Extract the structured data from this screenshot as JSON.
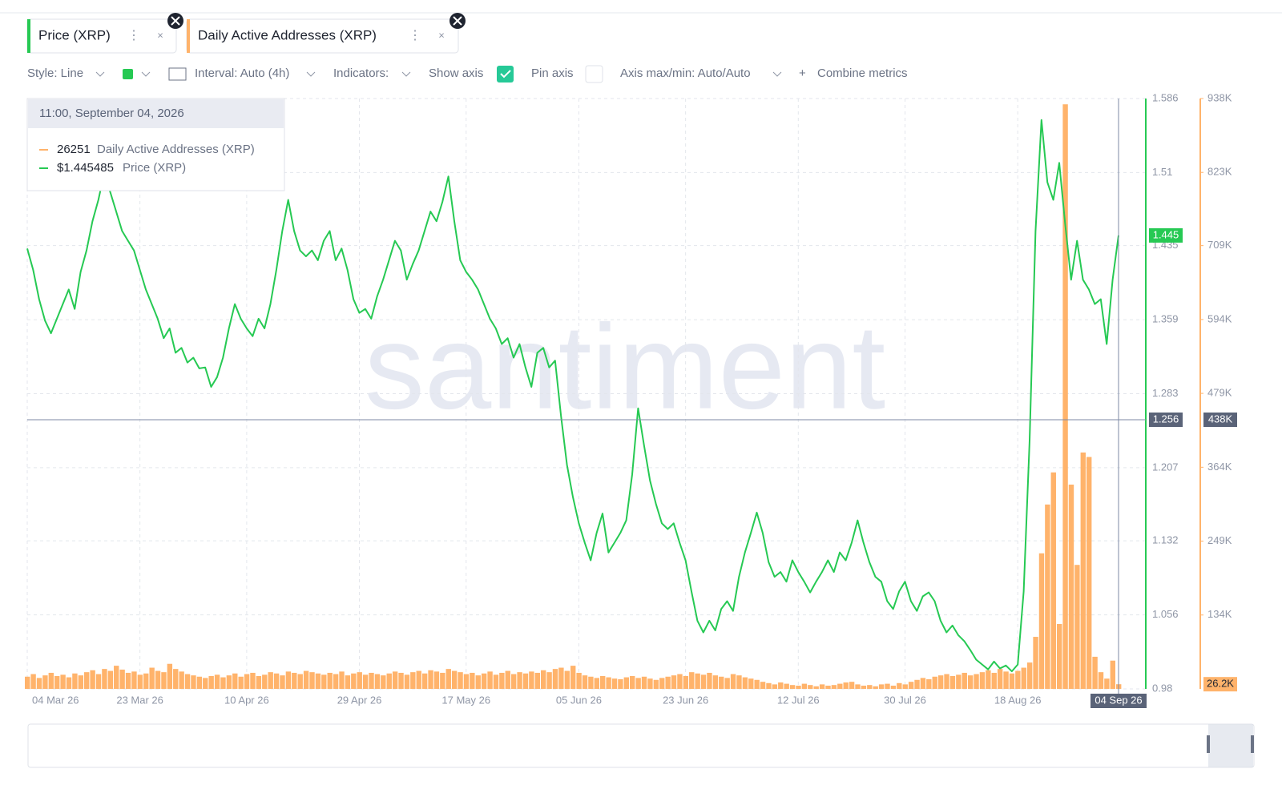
{
  "toolbar": {
    "metrics": [
      "Price (XRP)",
      "Daily Active Addresses (XRP)"
    ],
    "style": "Style: Line",
    "interval": "Interval: Auto (4h)",
    "indicators": "Indicators:",
    "show_axis": "Show axis",
    "pin_axis": "Pin axis",
    "axis_range": "Axis max/min: Auto/Auto",
    "combine": "Combine metrics"
  },
  "tooltip": {
    "time": "11:00, September 04, 2026",
    "values": [
      "26251",
      "$1.445485"
    ]
  },
  "crosshair": {
    "price_label": "1.256",
    "addresses_label": "438K"
  },
  "watermark": "santiment",
  "chart_data": {
    "type": "line",
    "categories": [
      "04 Mar 26",
      null,
      null,
      null,
      null,
      null,
      null,
      null,
      null,
      null,
      null,
      null,
      null,
      null,
      null,
      null,
      null,
      null,
      null,
      "23 Mar 26",
      null,
      null,
      null,
      null,
      null,
      null,
      null,
      null,
      null,
      null,
      null,
      null,
      null,
      null,
      null,
      null,
      null,
      "10 Apr 26",
      null,
      null,
      null,
      null,
      null,
      null,
      null,
      null,
      null,
      null,
      null,
      null,
      null,
      null,
      null,
      null,
      null,
      null,
      "29 Apr 26",
      null,
      null,
      null,
      null,
      null,
      null,
      null,
      null,
      null,
      null,
      null,
      null,
      null,
      null,
      null,
      null,
      null,
      "17 May 26",
      null,
      null,
      null,
      null,
      null,
      null,
      null,
      null,
      null,
      null,
      null,
      null,
      null,
      null,
      null,
      null,
      null,
      null,
      "05 Jun 26",
      null,
      null,
      null,
      null,
      null,
      null,
      null,
      null,
      null,
      null,
      null,
      null,
      null,
      null,
      null,
      null,
      null,
      "23 Jun 26",
      null,
      null,
      null,
      null,
      null,
      null,
      null,
      null,
      null,
      null,
      null,
      null,
      null,
      null,
      null,
      null,
      null,
      null,
      "12 Jul 26",
      null,
      null,
      null,
      null,
      null,
      null,
      null,
      null,
      null,
      null,
      null,
      null,
      null,
      null,
      null,
      null,
      null,
      "30 Jul 26",
      null,
      null,
      null,
      null,
      null,
      null,
      null,
      null,
      null,
      null,
      null,
      null,
      null,
      null,
      null,
      null,
      null,
      null,
      "18 Aug 26",
      null,
      null,
      null,
      null,
      null,
      null,
      null,
      null,
      null,
      null,
      null,
      null,
      null,
      null,
      null,
      null,
      "04 Sep 26"
    ],
    "series": [
      {
        "name": "Price (XRP)",
        "color": "#26c953",
        "axis": "y",
        "type": "line",
        "current_label": "1.445",
        "values": [
          1.432,
          1.41,
          1.38,
          1.358,
          1.345,
          1.36,
          1.375,
          1.39,
          1.37,
          1.408,
          1.43,
          1.46,
          1.482,
          1.51,
          1.49,
          1.47,
          1.45,
          1.44,
          1.43,
          1.41,
          1.39,
          1.375,
          1.36,
          1.34,
          1.35,
          1.325,
          1.33,
          1.315,
          1.32,
          1.309,
          1.31,
          1.29,
          1.3,
          1.32,
          1.35,
          1.375,
          1.36,
          1.35,
          1.342,
          1.36,
          1.35,
          1.375,
          1.41,
          1.45,
          1.482,
          1.45,
          1.43,
          1.424,
          1.43,
          1.42,
          1.44,
          1.45,
          1.42,
          1.432,
          1.41,
          1.38,
          1.366,
          1.37,
          1.36,
          1.383,
          1.4,
          1.42,
          1.44,
          1.43,
          1.4,
          1.416,
          1.43,
          1.45,
          1.47,
          1.46,
          1.48,
          1.506,
          1.46,
          1.42,
          1.408,
          1.4,
          1.39,
          1.375,
          1.36,
          1.35,
          1.334,
          1.34,
          1.32,
          1.334,
          1.31,
          1.29,
          1.325,
          1.33,
          1.31,
          1.317,
          1.26,
          1.21,
          1.177,
          1.15,
          1.13,
          1.112,
          1.14,
          1.16,
          1.12,
          1.13,
          1.14,
          1.153,
          1.2,
          1.268,
          1.23,
          1.194,
          1.17,
          1.15,
          1.144,
          1.15,
          1.13,
          1.112,
          1.08,
          1.05,
          1.038,
          1.05,
          1.04,
          1.062,
          1.07,
          1.06,
          1.095,
          1.12,
          1.14,
          1.161,
          1.14,
          1.11,
          1.095,
          1.1,
          1.09,
          1.112,
          1.1,
          1.09,
          1.079,
          1.09,
          1.1,
          1.112,
          1.1,
          1.12,
          1.112,
          1.13,
          1.153,
          1.13,
          1.11,
          1.095,
          1.09,
          1.07,
          1.062,
          1.08,
          1.09,
          1.07,
          1.06,
          1.075,
          1.079,
          1.07,
          1.05,
          1.038,
          1.045,
          1.035,
          1.029,
          1.02,
          1.01,
          1.005,
          1.0,
          1.008,
          1.001,
          1.004,
          0.998,
          1.005,
          1.08,
          1.235,
          1.45,
          1.564,
          1.5,
          1.482,
          1.52,
          1.457,
          1.4,
          1.44,
          1.4,
          1.39,
          1.375,
          1.38,
          1.334,
          1.4,
          1.445485
        ]
      },
      {
        "name": "Daily Active Addresses (XRP)",
        "color": "#ffb36b",
        "axis": "y2",
        "type": "bar",
        "current_label": "26.2K",
        "values": [
          38000,
          42000,
          36000,
          40000,
          44000,
          39000,
          41000,
          37000,
          43000,
          40000,
          45000,
          48000,
          42000,
          50000,
          47000,
          55000,
          49000,
          44000,
          46000,
          41000,
          43000,
          52000,
          47000,
          45000,
          58000,
          50000,
          46000,
          42000,
          40000,
          38000,
          36000,
          39000,
          41000,
          37000,
          40000,
          43000,
          38000,
          42000,
          44000,
          39000,
          41000,
          45000,
          43000,
          40000,
          46000,
          44000,
          42000,
          47000,
          45000,
          43000,
          41000,
          44000,
          42000,
          46000,
          40000,
          43000,
          45000,
          41000,
          44000,
          42000,
          40000,
          43000,
          46000,
          44000,
          41000,
          45000,
          47000,
          43000,
          48000,
          46000,
          44000,
          50000,
          47000,
          45000,
          42000,
          44000,
          40000,
          43000,
          46000,
          41000,
          44000,
          47000,
          42000,
          45000,
          43000,
          46000,
          44000,
          48000,
          45000,
          50000,
          52000,
          47000,
          55000,
          44000,
          40000,
          38000,
          36000,
          39000,
          37000,
          35000,
          34000,
          37000,
          39000,
          36000,
          38000,
          35000,
          33000,
          36000,
          38000,
          40000,
          42000,
          39000,
          45000,
          43000,
          41000,
          44000,
          40000,
          38000,
          36000,
          42000,
          40000,
          37000,
          35000,
          33000,
          30000,
          28000,
          26000,
          29000,
          27000,
          25000,
          24000,
          27000,
          25000,
          23000,
          26000,
          24000,
          25000,
          27000,
          29000,
          30000,
          26000,
          24000,
          25000,
          23000,
          26000,
          27000,
          24000,
          28000,
          26000,
          30000,
          33000,
          36000,
          34000,
          38000,
          40000,
          42000,
          39000,
          41000,
          44000,
          40000,
          42000,
          45000,
          48000,
          44000,
          50000,
          46000,
          43000,
          47000,
          52000,
          60000,
          100000,
          230000,
          306000,
          356000,
          120000,
          929000,
          337000,
          212000,
          387000,
          380000,
          69000,
          45000,
          35000,
          63000,
          26251
        ]
      }
    ],
    "ylim": [
      0.98,
      1.586
    ],
    "yticks": [
      0.98,
      1.056,
      1.132,
      1.207,
      1.283,
      1.359,
      1.435,
      1.51,
      1.586
    ],
    "y2lim": [
      19000,
      938000
    ],
    "y2ticks": [
      {
        "value": 134000,
        "label": "134K"
      },
      {
        "value": 249000,
        "label": "249K"
      },
      {
        "value": 364000,
        "label": "364K"
      },
      {
        "value": 479000,
        "label": "479K"
      },
      {
        "value": 594000,
        "label": "594K"
      },
      {
        "value": 709000,
        "label": "709K"
      },
      {
        "value": 823000,
        "label": "823K"
      },
      {
        "value": 938000,
        "label": "938K"
      }
    ],
    "grid": true
  }
}
